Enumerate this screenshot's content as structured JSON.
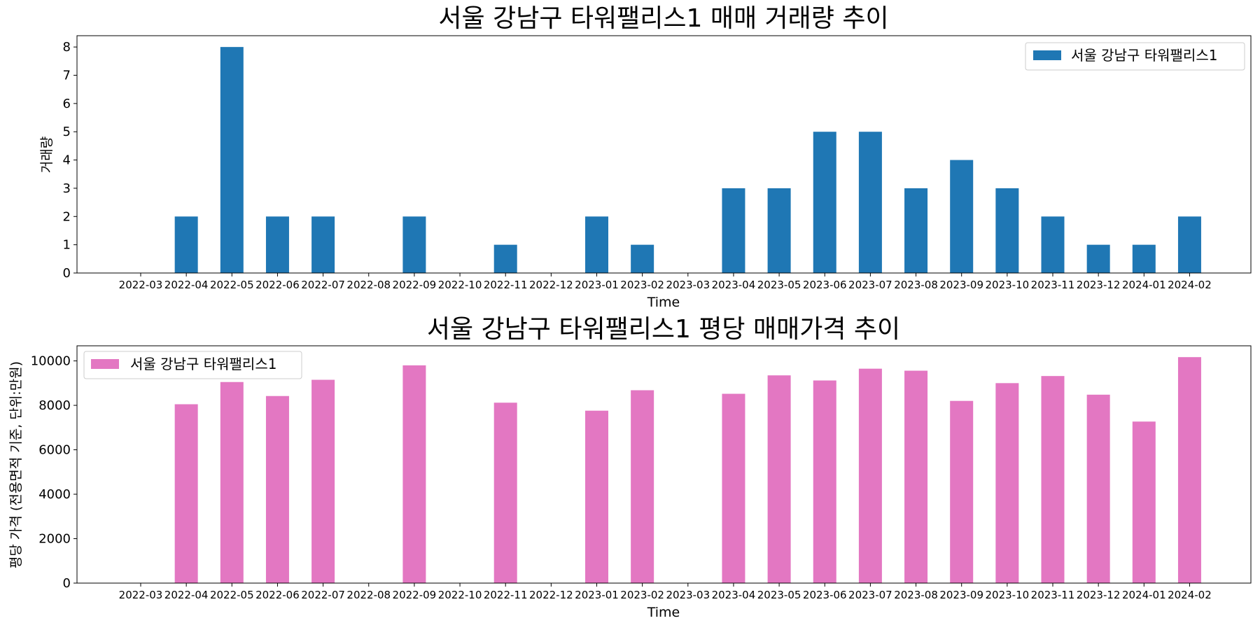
{
  "chart_data": [
    {
      "type": "bar",
      "title": "서울 강남구 타워팰리스1 매매 거래량 추이",
      "xlabel": "Time",
      "ylabel": "거래량",
      "categories": [
        "2022-03",
        "2022-04",
        "2022-05",
        "2022-06",
        "2022-07",
        "2022-08",
        "2022-09",
        "2022-10",
        "2022-11",
        "2022-12",
        "2023-01",
        "2023-02",
        "2023-03",
        "2023-04",
        "2023-05",
        "2023-06",
        "2023-07",
        "2023-08",
        "2023-09",
        "2023-10",
        "2023-11",
        "2023-12",
        "2024-01",
        "2024-02"
      ],
      "series": [
        {
          "name": "서울 강남구 타워팰리스1",
          "color": "#1f77b4",
          "values": [
            0,
            2,
            8,
            2,
            2,
            0,
            2,
            0,
            1,
            0,
            2,
            1,
            0,
            3,
            3,
            5,
            5,
            3,
            4,
            3,
            2,
            1,
            1,
            2
          ]
        }
      ],
      "ylim": [
        0,
        8.4
      ],
      "yticks": [
        0,
        1,
        2,
        3,
        4,
        5,
        6,
        7,
        8
      ],
      "grid": false,
      "legend_position": "top-right"
    },
    {
      "type": "bar",
      "title": "서울 강남구 타워팰리스1 평당 매매가격 추이",
      "xlabel": "Time",
      "ylabel": "평당 가격 (전용면적 기준, 단위:만원)",
      "categories": [
        "2022-03",
        "2022-04",
        "2022-05",
        "2022-06",
        "2022-07",
        "2022-08",
        "2022-09",
        "2022-10",
        "2022-11",
        "2022-12",
        "2023-01",
        "2023-02",
        "2023-03",
        "2023-04",
        "2023-05",
        "2023-06",
        "2023-07",
        "2023-08",
        "2023-09",
        "2023-10",
        "2023-11",
        "2023-12",
        "2024-01",
        "2024-02"
      ],
      "series": [
        {
          "name": "서울 강남구 타워팰리스1",
          "color": "#e377c2",
          "values": [
            0,
            8050,
            9050,
            8420,
            9150,
            0,
            9800,
            0,
            8120,
            0,
            7760,
            8680,
            0,
            8520,
            9350,
            9120,
            9650,
            9560,
            8200,
            9000,
            9320,
            8480,
            7270,
            10170
          ]
        }
      ],
      "ylim": [
        0,
        10680
      ],
      "yticks": [
        0,
        2000,
        4000,
        6000,
        8000,
        10000
      ],
      "grid": false,
      "legend_position": "top-left"
    }
  ]
}
